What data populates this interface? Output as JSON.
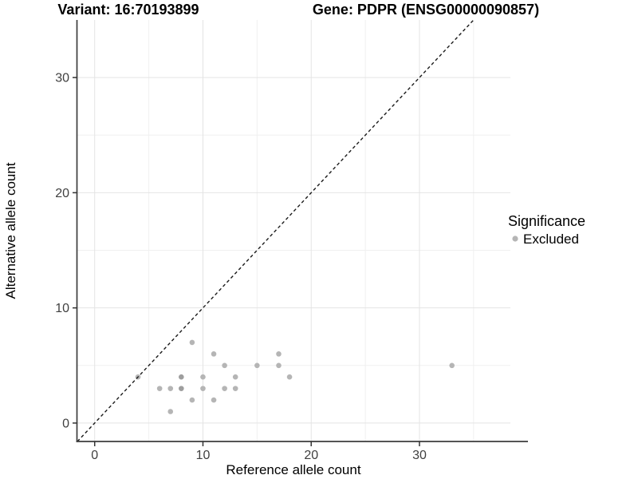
{
  "page": {
    "background": "#ffffff"
  },
  "chart_data": {
    "type": "scatter",
    "titles": {
      "left": "Variant: 16:70193899",
      "right": "Gene: PDPR (ENSG00000090857)"
    },
    "xlabel": "Reference allele count",
    "ylabel": "Alternative allele count",
    "xticks": [
      0,
      10,
      20,
      30
    ],
    "yticks": [
      0,
      10,
      20,
      30
    ],
    "x_minor": [
      5,
      15,
      25,
      35
    ],
    "y_minor": [
      5,
      15,
      25
    ],
    "xlim": [
      -1.6,
      38.4
    ],
    "ylim": [
      -1.6,
      35.0
    ],
    "grid": true,
    "identity_line": {
      "equation": "y = x",
      "style": "dashed",
      "color": "#1a1a1a"
    },
    "legend": {
      "title": "Significance",
      "position": "right",
      "items": [
        {
          "label": "Excluded",
          "color": "#b5b5b5"
        }
      ]
    },
    "series": [
      {
        "name": "Excluded",
        "color": "#b5b5b5",
        "overlap_color": "#9e9e9e",
        "points": [
          {
            "x": 4,
            "y": 4
          },
          {
            "x": 6,
            "y": 3
          },
          {
            "x": 7,
            "y": 1
          },
          {
            "x": 7,
            "y": 3
          },
          {
            "x": 8,
            "y": 3,
            "overlap": true
          },
          {
            "x": 8,
            "y": 4,
            "overlap": true
          },
          {
            "x": 9,
            "y": 2
          },
          {
            "x": 9,
            "y": 7
          },
          {
            "x": 10,
            "y": 3
          },
          {
            "x": 10,
            "y": 4
          },
          {
            "x": 11,
            "y": 2
          },
          {
            "x": 11,
            "y": 6
          },
          {
            "x": 12,
            "y": 3
          },
          {
            "x": 12,
            "y": 5
          },
          {
            "x": 13,
            "y": 3
          },
          {
            "x": 13,
            "y": 4
          },
          {
            "x": 15,
            "y": 5
          },
          {
            "x": 17,
            "y": 5
          },
          {
            "x": 17,
            "y": 6
          },
          {
            "x": 18,
            "y": 4
          },
          {
            "x": 33,
            "y": 5
          }
        ]
      }
    ],
    "colors": {
      "grid_major": "#e4e4e4",
      "grid_minor": "#f0f0f0",
      "axis_line": "#3c3c3c",
      "tick_mark": "#333333"
    }
  }
}
